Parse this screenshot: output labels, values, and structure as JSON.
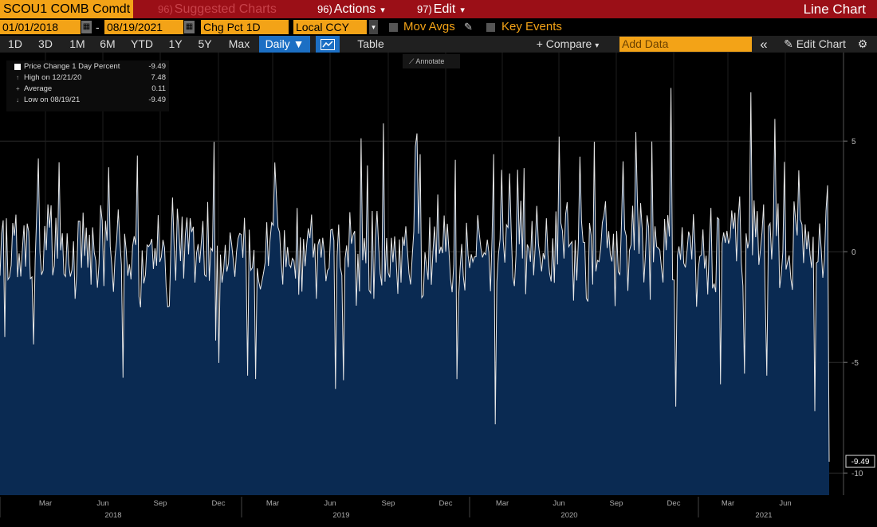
{
  "toolbar": {
    "ticker": "SCOU1 COMB Comdt",
    "suggested": {
      "num": "96)",
      "label": "Suggested Charts"
    },
    "actions": {
      "num": "96)",
      "label": "Actions"
    },
    "edit": {
      "num": "97)",
      "label": "Edit"
    },
    "chart_type": "Line Chart"
  },
  "controls": {
    "start_date": "01/01/2018",
    "end_date": "08/19/2021",
    "date_sep": "-",
    "metric": "Chg Pct 1D",
    "currency": "Local CCY",
    "mov_avgs": "Mov Avgs",
    "key_events": "Key Events"
  },
  "periods": {
    "p1d": "1D",
    "p3d": "3D",
    "p1m": "1M",
    "p6m": "6M",
    "pytd": "YTD",
    "p1y": "1Y",
    "p5y": "5Y",
    "pmax": "Max",
    "frequency": "Daily",
    "table": "Table",
    "compare": "+ Compare",
    "add_data_placeholder": "Add Data",
    "collapse": "«",
    "edit_chart": "Edit Chart"
  },
  "legend": {
    "series": {
      "label": "Price Change 1 Day Percent",
      "value": "-9.49"
    },
    "high": {
      "label": "High on 12/21/20",
      "value": "7.48"
    },
    "average": {
      "label": "Average",
      "value": "0.11"
    },
    "low": {
      "label": "Low on 08/19/21",
      "value": "-9.49"
    }
  },
  "annotate": "Annotate",
  "colors": {
    "series_line": "#e8e8e8",
    "area_fill": "#0a2a52",
    "accent_orange": "#f3a317",
    "header_red": "#9b0f17",
    "active_blue": "#1c6fc4"
  },
  "chart_data": {
    "type": "area",
    "series": [
      {
        "name": "Price Change 1 Day Percent",
        "last_value": -9.49,
        "high": 7.48,
        "average": 0.11,
        "low": -9.49
      }
    ],
    "x_range": [
      "2018-01-01",
      "2021-08-19"
    ],
    "ylim": [
      -11,
      9
    ],
    "y_ticks": [
      5,
      0,
      -5,
      -10
    ],
    "x_tick_labels": [
      "Mar",
      "Jun",
      "Sep",
      "Dec",
      "Mar",
      "Jun",
      "Sep",
      "Dec",
      "Mar",
      "Jun",
      "Sep",
      "Dec",
      "Mar",
      "Jun"
    ],
    "year_labels": [
      "2018",
      "2019",
      "2020",
      "2021"
    ],
    "last_value_label": "-9.49",
    "grid": true
  }
}
